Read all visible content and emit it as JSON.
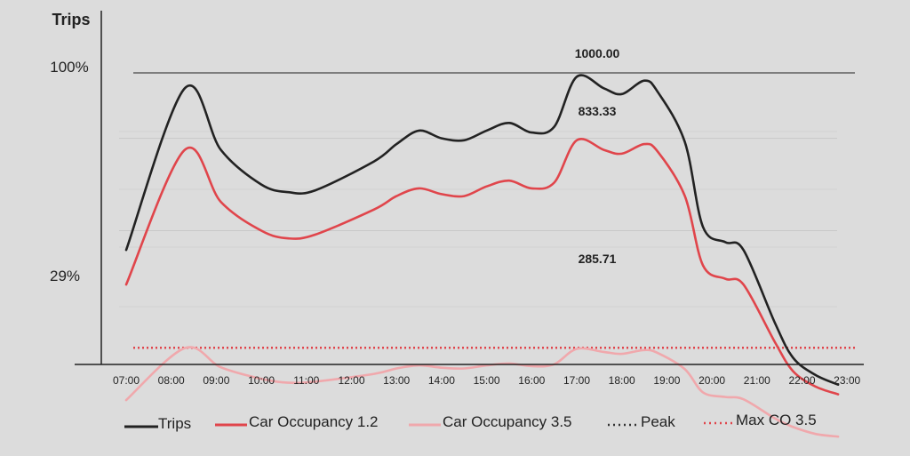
{
  "chart_data": {
    "type": "line",
    "title": "",
    "ylabel": "Trips",
    "xlabel": "",
    "y_percent_labels": [
      {
        "label": "100%",
        "value": 1000
      },
      {
        "label": "29%",
        "value": 285.71
      }
    ],
    "ylim": [
      0,
      1100
    ],
    "x": [
      "07:00",
      "08:00",
      "09:00",
      "10:00",
      "11:00",
      "12:00",
      "13:00",
      "14:00",
      "15:00",
      "16:00",
      "17:00",
      "18:00",
      "19:00",
      "20:00",
      "21:00",
      "22:00",
      "23:00"
    ],
    "series": [
      {
        "name": "Trips",
        "color": "#222222",
        "points": [
          [
            7,
            540
          ],
          [
            8.3,
            960
          ],
          [
            9.1,
            800
          ],
          [
            10,
            710
          ],
          [
            10.6,
            690
          ],
          [
            11.2,
            695
          ],
          [
            12.5,
            770
          ],
          [
            13,
            815
          ],
          [
            13.5,
            850
          ],
          [
            14,
            830
          ],
          [
            14.5,
            825
          ],
          [
            15,
            850
          ],
          [
            15.5,
            870
          ],
          [
            16,
            845
          ],
          [
            16.5,
            860
          ],
          [
            17,
            990
          ],
          [
            17.6,
            960
          ],
          [
            18,
            945
          ],
          [
            18.5,
            980
          ],
          [
            18.8,
            950
          ],
          [
            19.4,
            820
          ],
          [
            19.8,
            600
          ],
          [
            20.3,
            560
          ],
          [
            20.7,
            540
          ],
          [
            21.4,
            350
          ],
          [
            21.8,
            260
          ],
          [
            22.3,
            215
          ],
          [
            22.8,
            190
          ]
        ]
      },
      {
        "name": "Car Occupancy 1.2",
        "color": "#e0454b",
        "points": [
          [
            7,
            450
          ],
          [
            8.3,
            800
          ],
          [
            9.1,
            665
          ],
          [
            10,
            590
          ],
          [
            10.6,
            570
          ],
          [
            11.2,
            580
          ],
          [
            12.5,
            645
          ],
          [
            13,
            680
          ],
          [
            13.5,
            700
          ],
          [
            14,
            685
          ],
          [
            14.5,
            680
          ],
          [
            15,
            705
          ],
          [
            15.5,
            720
          ],
          [
            16,
            700
          ],
          [
            16.5,
            715
          ],
          [
            17,
            825
          ],
          [
            17.6,
            800
          ],
          [
            18,
            790
          ],
          [
            18.5,
            815
          ],
          [
            18.8,
            795
          ],
          [
            19.4,
            680
          ],
          [
            19.8,
            500
          ],
          [
            20.3,
            465
          ],
          [
            20.7,
            450
          ],
          [
            21.4,
            300
          ],
          [
            21.8,
            225
          ],
          [
            22.3,
            185
          ],
          [
            22.8,
            165
          ]
        ]
      },
      {
        "name": "Car Occupancy 3.5",
        "color": "#f0a8ac",
        "points": [
          [
            7,
            150
          ],
          [
            8.3,
            285
          ],
          [
            9.1,
            235
          ],
          [
            10,
            205
          ],
          [
            10.6,
            195
          ],
          [
            11.2,
            198
          ],
          [
            12.5,
            218
          ],
          [
            13,
            232
          ],
          [
            13.5,
            240
          ],
          [
            14,
            234
          ],
          [
            14.5,
            232
          ],
          [
            15,
            240
          ],
          [
            15.5,
            245
          ],
          [
            16,
            238
          ],
          [
            16.5,
            243
          ],
          [
            17,
            283
          ],
          [
            17.6,
            275
          ],
          [
            18,
            270
          ],
          [
            18.5,
            280
          ],
          [
            18.8,
            272
          ],
          [
            19.4,
            230
          ],
          [
            19.8,
            170
          ],
          [
            20.3,
            158
          ],
          [
            20.7,
            152
          ],
          [
            21.4,
            102
          ],
          [
            21.8,
            80
          ],
          [
            22.3,
            62
          ],
          [
            22.8,
            55
          ]
        ]
      }
    ],
    "reference_lines": [
      {
        "name": "Peak",
        "value": 1000,
        "color": "#555555",
        "style": "solid"
      },
      {
        "name": "Max CO 3.5",
        "value": 285.71,
        "color": "#e0454b",
        "style": "dotted"
      }
    ],
    "annotations": [
      {
        "text": "1000.00",
        "x": 17,
        "y": 1000
      },
      {
        "text": "833.33",
        "x": 17,
        "y": 833.33
      },
      {
        "text": "285.71",
        "x": 17,
        "y": 285.71
      }
    ],
    "gridlines": [
      0.59,
      0.83
    ],
    "legend": {
      "placement": "bottom",
      "items": [
        {
          "label": "Trips",
          "color": "#222222",
          "style": "solid"
        },
        {
          "label": "Car Occupancy 1.2",
          "color": "#e0454b",
          "style": "solid"
        },
        {
          "label": "Car Occupancy 3.5",
          "color": "#f0a8ac",
          "style": "solid"
        },
        {
          "label": "Peak",
          "color": "#333333",
          "style": "dotted"
        },
        {
          "label": "Max CO 3.5",
          "color": "#e0454b",
          "style": "dotted"
        }
      ]
    }
  }
}
